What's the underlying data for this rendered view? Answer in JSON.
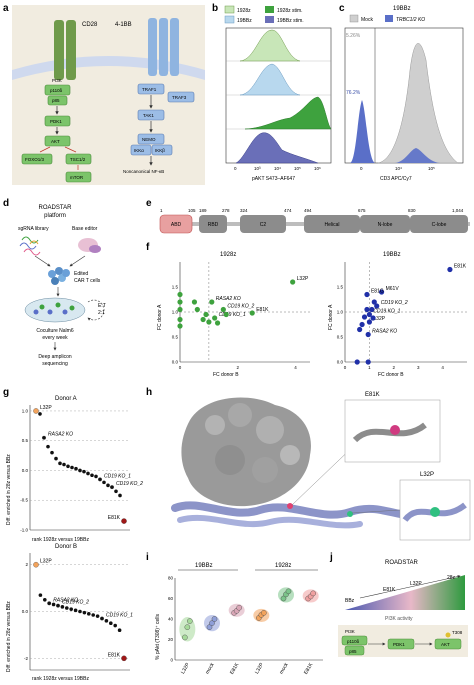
{
  "panels": {
    "a": {
      "letter": "a",
      "left_label": "CD28",
      "right_label": "4-1BB",
      "pi3k": "PI3K",
      "p110": "p110δ",
      "p85": "p85",
      "pdk1": "PDK1",
      "akt": "AKT",
      "foxo": "FOXO1/3",
      "tsc": "TSC1/2",
      "mtor": "mTOR",
      "traf1": "TRAF1",
      "traf3": "TRAF3",
      "tak1": "TAK1",
      "nemo": "NEMO",
      "ikka": "IKKα",
      "ikkb": "IKKβ",
      "nfkb": "Noncanonical NF-κB"
    },
    "b": {
      "letter": "b",
      "legend": [
        "1928z",
        "1928z stim.",
        "19BBz",
        "19BBz stim."
      ],
      "xlabel": "pAKT S473–AF647",
      "ticks": [
        "0",
        "10³",
        "10⁴",
        "10⁵",
        "10⁶"
      ]
    },
    "c": {
      "letter": "c",
      "title": "19BBz",
      "legend_mock": "Mock",
      "legend_ko": "TRBC1/2 KO",
      "pct_mock": "5.26%",
      "pct_ko": "76.2%",
      "xlabel": "CD3 APC/Cy7",
      "ticks": [
        "0",
        "10⁴",
        "10⁵"
      ]
    },
    "d": {
      "letter": "d",
      "title_line1": "ROADSTAR",
      "title_line2": "platform",
      "sgrna": "sgRNA library",
      "base_editor": "Base editor",
      "edited_line1": "Edited",
      "edited_line2": "CAR T cells",
      "et_line1": "E:T",
      "et_line2": "2:1",
      "coculture_line1": "Coculture Nalm6",
      "coculture_line2": "every week",
      "deep_line1": "Deep amplicon",
      "deep_line2": "sequencing"
    },
    "e": {
      "letter": "e",
      "domains": [
        "ABD",
        "RBD",
        "C2",
        "Helical",
        "N-lobe",
        "C-lobe"
      ],
      "positions": [
        "1",
        "105",
        "189",
        "278",
        "324",
        "474",
        "494",
        "675",
        "830",
        "1,044"
      ]
    },
    "f": {
      "letter": "f",
      "left_title": "1928z",
      "right_title": "19BBz",
      "xlabel": "FC donor B",
      "ylabel": "FC donor A"
    },
    "g": {
      "letter": "g",
      "top_title": "Donor A",
      "bottom_title": "Donor B",
      "ylabel": "Diff. enriched in 28z versus BBz",
      "xlabel": "rank 1928z versus 19BBz",
      "top_labels": [
        "L32P",
        "RASA2 KO",
        "CD19 KO_1",
        "CD19 KO_2",
        "E81K"
      ],
      "bottom_labels": [
        "L32P",
        "RASA2 KO",
        "CD19 KO_1",
        "CD19 KO_2",
        "E81K"
      ]
    },
    "h": {
      "letter": "h",
      "label_e81k": "E81K",
      "label_l32p": "L32P"
    },
    "i": {
      "letter": "i",
      "group1": "19BBz",
      "group2": "1928z",
      "ylabel": "% pAkt (T308)⁺ cells",
      "xticks": [
        "L32P",
        "mock",
        "E81K",
        "L32P",
        "mock",
        "E81K"
      ],
      "yticks": [
        "0",
        "20",
        "40",
        "60",
        "80"
      ]
    },
    "j": {
      "letter": "j",
      "title": "ROADSTAR",
      "bbz": "BBz",
      "e81k": "E81K",
      "l32p": "L32P",
      "z28": "28z",
      "activity": "PI3K activity",
      "pi3k": "PI3K",
      "p110": "p110δ",
      "p85": "p85",
      "pdk1": "PDK1",
      "akt": "AKT",
      "t308": "T308"
    }
  },
  "chart_data": [
    {
      "id": "f-left",
      "type": "scatter",
      "title": "1928z",
      "xlabel": "FC donor B",
      "ylabel": "FC donor A",
      "xlim": [
        0,
        4.5
      ],
      "ylim": [
        0,
        2.0
      ],
      "xticks": [
        0,
        2,
        4
      ],
      "yticks": [
        0,
        0.5,
        1.0,
        1.5
      ],
      "points": [
        {
          "x": 3.9,
          "y": 1.6,
          "label": "L32P"
        },
        {
          "x": 1.1,
          "y": 1.2,
          "label": "RASA2 KO"
        },
        {
          "x": 1.5,
          "y": 1.05,
          "label": "CD19 KO_2"
        },
        {
          "x": 2.5,
          "y": 0.98,
          "label": "E81K"
        },
        {
          "x": 1.2,
          "y": 0.88,
          "label": "CD19 KO_1"
        },
        {
          "x": 0.0,
          "y": 1.35,
          "label": ""
        },
        {
          "x": 0.0,
          "y": 1.2,
          "label": ""
        },
        {
          "x": 0.0,
          "y": 1.05,
          "label": ""
        },
        {
          "x": 0.0,
          "y": 0.85,
          "label": ""
        },
        {
          "x": 0.0,
          "y": 0.72,
          "label": ""
        },
        {
          "x": 0.5,
          "y": 1.2,
          "label": ""
        },
        {
          "x": 0.6,
          "y": 1.05,
          "label": ""
        },
        {
          "x": 0.9,
          "y": 0.95,
          "label": ""
        },
        {
          "x": 0.8,
          "y": 0.85,
          "label": ""
        },
        {
          "x": 1.0,
          "y": 0.8,
          "label": ""
        },
        {
          "x": 1.3,
          "y": 0.78,
          "label": ""
        },
        {
          "x": 1.6,
          "y": 0.95,
          "label": ""
        }
      ]
    },
    {
      "id": "f-right",
      "type": "scatter",
      "title": "19BBz",
      "xlabel": "FC donor B",
      "ylabel": "FC donor A",
      "xlim": [
        0,
        5
      ],
      "ylim": [
        0,
        2.0
      ],
      "xticks": [
        0,
        1,
        2,
        3,
        4
      ],
      "yticks": [
        0,
        0.5,
        1.0,
        1.5
      ],
      "points": [
        {
          "x": 4.3,
          "y": 1.85,
          "label": "E81K"
        },
        {
          "x": 1.5,
          "y": 1.4,
          "label": "M61V"
        },
        {
          "x": 0.9,
          "y": 1.35,
          "label": "E81G"
        },
        {
          "x": 1.3,
          "y": 1.12,
          "label": "CD19 KO_2"
        },
        {
          "x": 1.0,
          "y": 0.95,
          "label": "CD19 KO_1"
        },
        {
          "x": 1.0,
          "y": 0.8,
          "label": "L32P"
        },
        {
          "x": 0.95,
          "y": 0.55,
          "label": "RASA2 KO"
        },
        {
          "x": 1.2,
          "y": 1.2,
          "label": ""
        },
        {
          "x": 1.1,
          "y": 1.05,
          "label": ""
        },
        {
          "x": 0.9,
          "y": 1.05,
          "label": ""
        },
        {
          "x": 0.8,
          "y": 0.9,
          "label": ""
        },
        {
          "x": 0.7,
          "y": 0.75,
          "label": ""
        },
        {
          "x": 0.6,
          "y": 0.65,
          "label": ""
        },
        {
          "x": 1.15,
          "y": 0.88,
          "label": ""
        },
        {
          "x": 0.5,
          "y": 0.0,
          "label": ""
        },
        {
          "x": 0.95,
          "y": 0.0,
          "label": ""
        }
      ]
    },
    {
      "id": "g-top",
      "type": "scatter",
      "title": "Donor A",
      "xlabel": "rank 1928z versus 19BBz",
      "ylabel": "Diff. enriched in 28z versus BBz",
      "ylim": [
        -1.0,
        1.1
      ],
      "yticks": [
        -1.0,
        -0.5,
        0,
        0.5,
        1.0
      ],
      "values": [
        1.0,
        0.95,
        0.55,
        0.4,
        0.3,
        0.2,
        0.12,
        0.1,
        0.07,
        0.05,
        0.03,
        0.0,
        -0.02,
        -0.05,
        -0.08,
        -0.1,
        -0.15,
        -0.2,
        -0.25,
        -0.28,
        -0.35,
        -0.42,
        -0.85
      ],
      "highlight": {
        "L32P": 0,
        "RASA2 KO": 2,
        "CD19 KO_1": 16,
        "CD19 KO_2": 19,
        "E81K": 22
      }
    },
    {
      "id": "g-bottom",
      "type": "scatter",
      "title": "Donor B",
      "xlabel": "rank 1928z versus 19BBz",
      "ylabel": "Diff. enriched in 28z versus BBz",
      "ylim": [
        -2.5,
        2.5
      ],
      "yticks": [
        -2,
        0,
        2
      ],
      "values": [
        2.0,
        0.7,
        0.5,
        0.35,
        0.3,
        0.25,
        0.2,
        0.15,
        0.1,
        0.05,
        0.0,
        -0.05,
        -0.1,
        -0.15,
        -0.2,
        -0.3,
        -0.4,
        -0.5,
        -0.6,
        -0.8,
        -2.0
      ],
      "highlight": {
        "L32P": 0,
        "RASA2 KO": 3,
        "CD19 KO_1": 15,
        "CD19 KO_2": 5,
        "E81K": 20
      }
    },
    {
      "id": "i",
      "type": "scatter",
      "ylabel": "% pAkt (T308)⁺ cells",
      "ylim": [
        0,
        80
      ],
      "yticks": [
        0,
        20,
        40,
        60,
        80
      ],
      "groups": [
        {
          "name": "L32P",
          "group": "19BBz",
          "values": [
            22,
            32,
            38
          ],
          "color": "#a6d99a"
        },
        {
          "name": "mock",
          "group": "19BBz",
          "values": [
            32,
            36,
            40
          ],
          "color": "#8f9fd8"
        },
        {
          "name": "E81K",
          "group": "19BBz",
          "values": [
            46,
            48,
            51
          ],
          "color": "#d9a6b6"
        },
        {
          "name": "L32P",
          "group": "1928z",
          "values": [
            41,
            44,
            46
          ],
          "color": "#f2a35c"
        },
        {
          "name": "mock",
          "group": "1928z",
          "values": [
            60,
            64,
            67
          ],
          "color": "#7cc48a"
        },
        {
          "name": "E81K",
          "group": "1928z",
          "values": [
            60,
            62,
            65
          ],
          "color": "#f0a0a0"
        }
      ]
    }
  ]
}
